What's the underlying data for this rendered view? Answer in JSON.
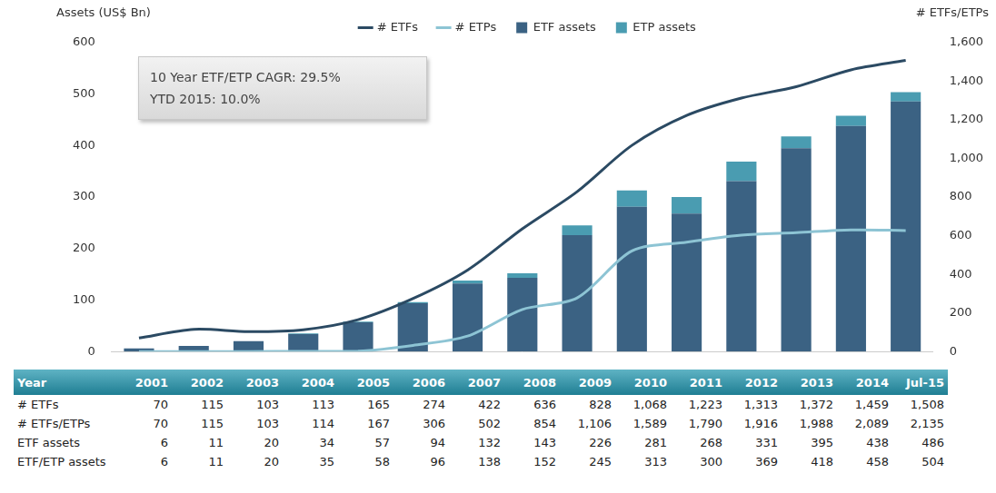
{
  "chart_data": {
    "type": "bar",
    "ylabel": "Assets (US$ Bn)",
    "y2label": "# ETFs/ETPs",
    "annotations": [
      "10 Year ETF/ETP CAGR: 29.5%",
      "YTD 2015: 10.0%"
    ],
    "categories": [
      "2001",
      "2002",
      "2003",
      "2004",
      "2005",
      "2006",
      "2007",
      "2008",
      "2009",
      "2010",
      "2011",
      "2012",
      "2013",
      "2014",
      "Jul-15"
    ],
    "series": [
      {
        "name": "ETF assets",
        "type": "bar",
        "color": "#3b6283",
        "values": [
          6,
          11,
          20,
          34,
          57,
          94,
          132,
          143,
          226,
          281,
          268,
          331,
          395,
          438,
          486
        ]
      },
      {
        "name": "ETP assets",
        "type": "bar",
        "color": "#4a9cb1",
        "values": [
          0,
          0,
          0,
          1,
          1,
          2,
          6,
          9,
          19,
          32,
          32,
          38,
          23,
          20,
          18
        ]
      },
      {
        "name": "# ETFs",
        "type": "line",
        "axis": "y2",
        "color": "#2b4a63",
        "values": [
          70,
          115,
          103,
          113,
          165,
          274,
          422,
          636,
          828,
          1068,
          1223,
          1313,
          1372,
          1459,
          1508
        ]
      },
      {
        "name": "# ETPs",
        "type": "line",
        "axis": "y2",
        "color": "#8dc4d4",
        "values": [
          0,
          0,
          0,
          1,
          2,
          32,
          80,
          218,
          278,
          521,
          567,
          603,
          616,
          630,
          627
        ]
      }
    ],
    "ylim": [
      0,
      600
    ],
    "yticks": [
      0,
      100,
      200,
      300,
      400,
      500,
      600
    ],
    "y2lim": [
      0,
      1600
    ],
    "y2ticks": [
      0,
      200,
      400,
      600,
      800,
      {
        "value": 1000,
        "label": "1,000"
      },
      {
        "value": 1200,
        "label": "1,200"
      },
      {
        "value": 1400,
        "label": "1,400"
      },
      {
        "value": 1600,
        "label": "1,600"
      }
    ],
    "stacked": true,
    "grid": false,
    "legend": "top",
    "tick_labels": "y"
  },
  "table": {
    "header": [
      "Year",
      "2001",
      "2002",
      "2003",
      "2004",
      "2005",
      "2006",
      "2007",
      "2008",
      "2009",
      "2010",
      "2011",
      "2012",
      "2013",
      "2014",
      "Jul-15"
    ],
    "rows": [
      [
        "# ETFs",
        "70",
        "115",
        "103",
        "113",
        "165",
        "274",
        "422",
        "636",
        "828",
        "1,068",
        "1,223",
        "1,313",
        "1,372",
        "1,459",
        "1,508"
      ],
      [
        "# ETFs/ETPs",
        "70",
        "115",
        "103",
        "114",
        "167",
        "306",
        "502",
        "854",
        "1,106",
        "1,589",
        "1,790",
        "1,916",
        "1,988",
        "2,089",
        "2,135"
      ],
      [
        "ETF assets",
        "6",
        "11",
        "20",
        "34",
        "57",
        "94",
        "132",
        "143",
        "226",
        "281",
        "268",
        "331",
        "395",
        "438",
        "486"
      ],
      [
        "ETF/ETP assets",
        "6",
        "11",
        "20",
        "35",
        "58",
        "96",
        "138",
        "152",
        "245",
        "313",
        "300",
        "369",
        "418",
        "458",
        "504"
      ]
    ]
  }
}
